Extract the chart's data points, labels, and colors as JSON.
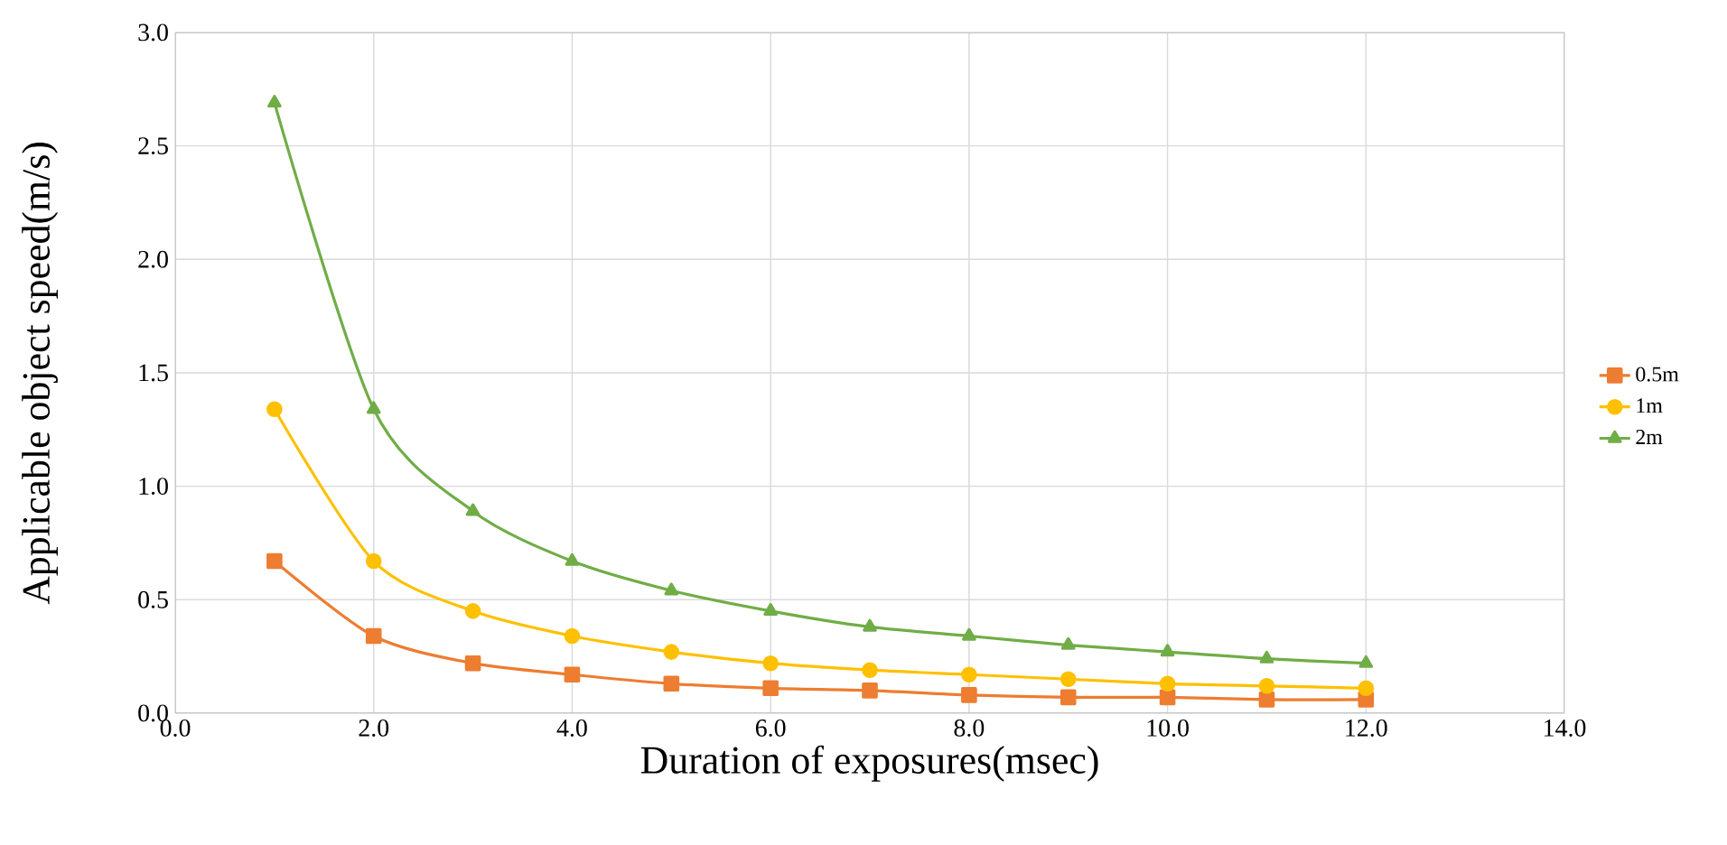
{
  "chart_data": {
    "type": "line",
    "xlabel": "Duration of exposures(msec)",
    "ylabel": "Applicable object speed(m/s)",
    "xlim": [
      0,
      14
    ],
    "ylim": [
      0,
      3
    ],
    "xticks": [
      {
        "value": 0,
        "label": "0.0"
      },
      {
        "value": 2,
        "label": "2.0"
      },
      {
        "value": 4,
        "label": "4.0"
      },
      {
        "value": 6,
        "label": "6.0"
      },
      {
        "value": 8,
        "label": "8.0"
      },
      {
        "value": 10,
        "label": "10.0"
      },
      {
        "value": 12,
        "label": "12.0"
      },
      {
        "value": 14,
        "label": "14.0"
      }
    ],
    "yticks": [
      {
        "value": 0,
        "label": "0.0"
      },
      {
        "value": 0.5,
        "label": "0.5"
      },
      {
        "value": 1,
        "label": "1.0"
      },
      {
        "value": 1.5,
        "label": "1.5"
      },
      {
        "value": 2,
        "label": "2.0"
      },
      {
        "value": 2.5,
        "label": "2.5"
      },
      {
        "value": 3,
        "label": "3.0"
      }
    ],
    "grid": true,
    "legend": "right",
    "line_style": "solid",
    "x": [
      1,
      2,
      3,
      4,
      5,
      6,
      7,
      8,
      9,
      10,
      11,
      12
    ],
    "series": [
      {
        "name": "0.5m",
        "color": "#ed7d31",
        "marker": "square",
        "values": [
          0.67,
          0.34,
          0.22,
          0.17,
          0.13,
          0.11,
          0.1,
          0.08,
          0.07,
          0.07,
          0.06,
          0.06
        ]
      },
      {
        "name": "1m",
        "color": "#ffc000",
        "marker": "circle",
        "values": [
          1.34,
          0.67,
          0.45,
          0.34,
          0.27,
          0.22,
          0.19,
          0.17,
          0.15,
          0.13,
          0.12,
          0.11
        ]
      },
      {
        "name": "2m",
        "color": "#70ad47",
        "marker": "triangle",
        "values": [
          2.69,
          1.34,
          0.89,
          0.67,
          0.54,
          0.45,
          0.38,
          0.34,
          0.3,
          0.27,
          0.24,
          0.22
        ]
      }
    ]
  }
}
